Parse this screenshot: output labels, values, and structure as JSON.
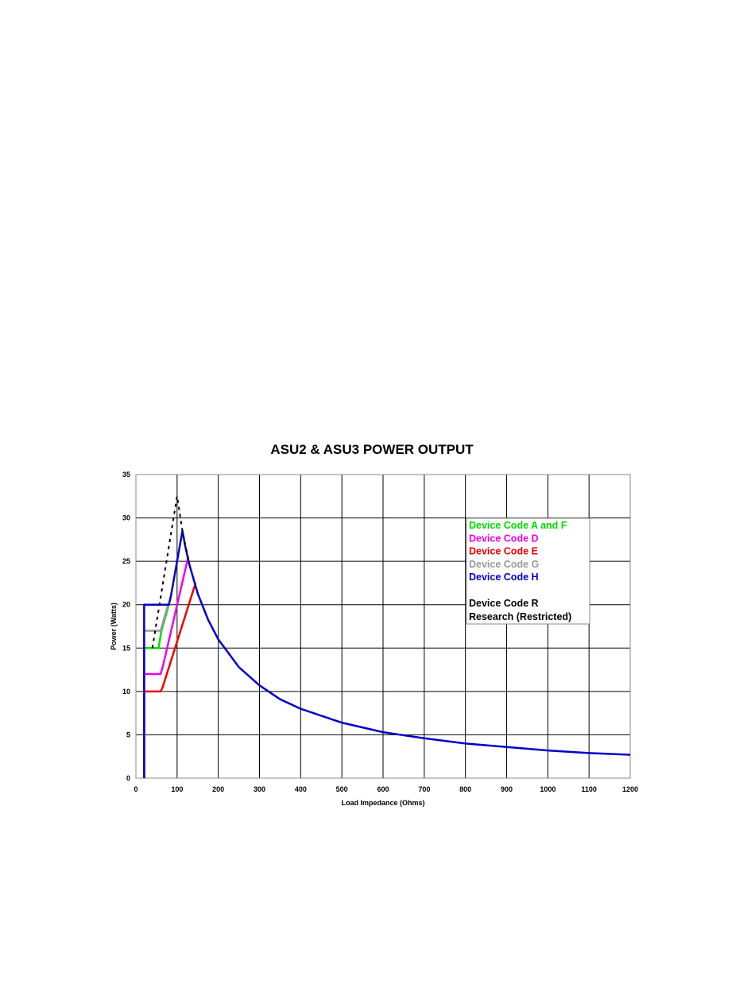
{
  "chart_data": {
    "type": "line",
    "title": "ASU2 & ASU3 POWER OUTPUT",
    "x_label": "Load Impedance (Ohms)",
    "y_label": "Power (Watts)",
    "xlim": [
      0,
      1200
    ],
    "xticks": [
      0,
      100,
      200,
      300,
      400,
      500,
      600,
      700,
      800,
      900,
      1000,
      1100,
      1200
    ],
    "ylim": [
      0,
      35
    ],
    "yticks": [
      0,
      5,
      10,
      15,
      20,
      25,
      30,
      35
    ],
    "grid": true,
    "series": [
      {
        "name": "Device Code A and F",
        "color": "#00dd00",
        "x": [
          20,
          20,
          55,
          62,
          80
        ],
        "values": [
          0,
          15,
          15,
          17,
          20
        ]
      },
      {
        "name": "Device Code D",
        "color": "#ee00ee",
        "x": [
          20,
          20,
          60,
          66,
          127
        ],
        "values": [
          0,
          12,
          12,
          13,
          25.5
        ]
      },
      {
        "name": "Device Code E",
        "color": "#ee0000",
        "x": [
          20,
          20,
          60,
          65,
          145
        ],
        "values": [
          0,
          10,
          10,
          10.5,
          22.5
        ]
      },
      {
        "name": "Device Code G",
        "color": "#999999",
        "x": [
          20,
          20,
          60,
          66,
          78
        ],
        "values": [
          0,
          17,
          17,
          18,
          20
        ]
      },
      {
        "name": "Device Code H",
        "color": "#0000cc",
        "x": [
          20,
          20,
          80,
          85,
          113,
          120,
          130,
          150,
          175,
          200,
          250,
          300,
          350,
          400,
          500,
          600,
          700,
          800,
          900,
          1000,
          1100,
          1200
        ],
        "values": [
          0,
          20,
          20,
          21,
          28.5,
          26.7,
          24.6,
          21.3,
          18.3,
          16,
          12.8,
          10.7,
          9.1,
          8,
          6.4,
          5.3,
          4.6,
          4,
          3.6,
          3.2,
          2.9,
          2.7
        ]
      },
      {
        "name": "Device Code R",
        "color": "#000000",
        "dashed": true,
        "x": [
          40,
          100,
          113,
          130
        ],
        "values": [
          15,
          32.5,
          28.5,
          24.6
        ]
      }
    ],
    "legend_note": "Research (Restricted)"
  }
}
